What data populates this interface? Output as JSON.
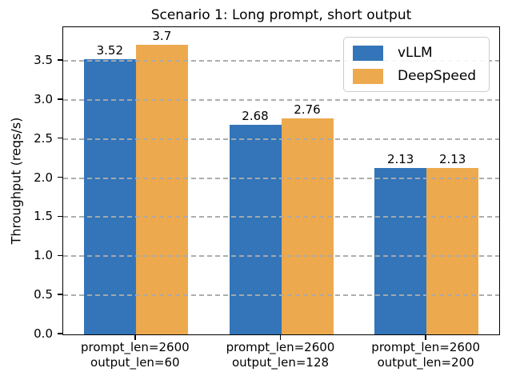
{
  "chart_data": {
    "type": "bar",
    "title": "Scenario 1: Long prompt, short output",
    "xlabel": "",
    "ylabel": "Throughput (reqs/s)",
    "categories": [
      [
        "prompt_len=2600",
        "output_len=60"
      ],
      [
        "prompt_len=2600",
        "output_len=128"
      ],
      [
        "prompt_len=2600",
        "output_len=200"
      ]
    ],
    "series": [
      {
        "name": "vLLM",
        "color": "#3375b8",
        "values": [
          3.52,
          2.68,
          2.13
        ]
      },
      {
        "name": "DeepSpeed",
        "color": "#eda94e",
        "values": [
          3.7,
          2.76,
          2.13
        ]
      }
    ],
    "bar_value_labels": true,
    "yticks": [
      0.0,
      0.5,
      1.0,
      1.5,
      2.0,
      2.5,
      3.0,
      3.5
    ],
    "ylim": [
      0,
      3.93
    ],
    "grid": {
      "axis": "y",
      "style": "dashed",
      "color": "#aaaaaa",
      "over_bars": true
    },
    "legend": {
      "position": "upper right"
    },
    "spine_color": "#000000",
    "background": "#ffffff"
  }
}
